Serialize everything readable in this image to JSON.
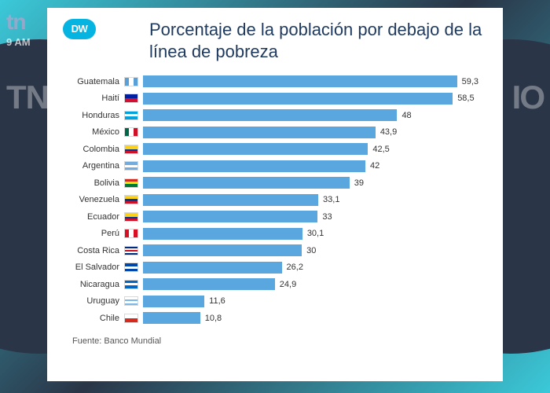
{
  "overlay": {
    "logo_text": "tn",
    "ribbon_glyph": "8",
    "time": "9 AM",
    "watermark_left": "TN",
    "watermark_right": "IO"
  },
  "card": {
    "dw_logo": "DW",
    "title": "Porcentaje de la población por debajo de la línea de pobreza",
    "source": "Fuente: Banco Mundial"
  },
  "chart": {
    "type": "bar-horizontal",
    "bar_color": "#5aa7e0",
    "background_color": "#ffffff",
    "max_value": 65,
    "label_fontsize": 11,
    "value_fontsize": 11,
    "data": [
      {
        "country": "Guatemala",
        "value": 59.3,
        "label": "59,3",
        "flag": [
          "#5aa0d8",
          "#ffffff",
          "#5aa0d8"
        ],
        "flag_dir": "v"
      },
      {
        "country": "Haití",
        "value": 58.5,
        "label": "58,5",
        "flag": [
          "#00209f",
          "#d21034"
        ],
        "flag_dir": "h"
      },
      {
        "country": "Honduras",
        "value": 48,
        "label": "48",
        "flag": [
          "#00a3dd",
          "#ffffff",
          "#00a3dd"
        ],
        "flag_dir": "h"
      },
      {
        "country": "México",
        "value": 43.9,
        "label": "43,9",
        "flag": [
          "#006847",
          "#ffffff",
          "#ce1126"
        ],
        "flag_dir": "v"
      },
      {
        "country": "Colombia",
        "value": 42.5,
        "label": "42,5",
        "flag": [
          "#fcd116",
          "#fcd116",
          "#003893",
          "#ce1126"
        ],
        "flag_dir": "h"
      },
      {
        "country": "Argentina",
        "value": 42,
        "label": "42",
        "flag": [
          "#74acdf",
          "#ffffff",
          "#74acdf"
        ],
        "flag_dir": "h"
      },
      {
        "country": "Bolivia",
        "value": 39,
        "label": "39",
        "flag": [
          "#d52b1e",
          "#f9e300",
          "#007934"
        ],
        "flag_dir": "h"
      },
      {
        "country": "Venezuela",
        "value": 33.1,
        "label": "33,1",
        "flag": [
          "#fcd116",
          "#003893",
          "#ce1126"
        ],
        "flag_dir": "h"
      },
      {
        "country": "Ecuador",
        "value": 33,
        "label": "33",
        "flag": [
          "#fcd116",
          "#fcd116",
          "#003893",
          "#ce1126"
        ],
        "flag_dir": "h"
      },
      {
        "country": "Perú",
        "value": 30.1,
        "label": "30,1",
        "flag": [
          "#d91023",
          "#ffffff",
          "#d91023"
        ],
        "flag_dir": "v"
      },
      {
        "country": "Costa Rica",
        "value": 30,
        "label": "30",
        "flag": [
          "#002b7f",
          "#ffffff",
          "#ce1126",
          "#ffffff",
          "#002b7f"
        ],
        "flag_dir": "h"
      },
      {
        "country": "El Salvador",
        "value": 26.2,
        "label": "26,2",
        "flag": [
          "#0047ab",
          "#ffffff",
          "#0047ab"
        ],
        "flag_dir": "h"
      },
      {
        "country": "Nicaragua",
        "value": 24.9,
        "label": "24,9",
        "flag": [
          "#0067c6",
          "#ffffff",
          "#0067c6"
        ],
        "flag_dir": "h"
      },
      {
        "country": "Uruguay",
        "value": 11.6,
        "label": "11,6",
        "flag": [
          "#ffffff",
          "#7cb9e8",
          "#ffffff",
          "#7cb9e8"
        ],
        "flag_dir": "h"
      },
      {
        "country": "Chile",
        "value": 10.8,
        "label": "10,8",
        "flag": [
          "#ffffff",
          "#d52b1e"
        ],
        "flag_dir": "h"
      }
    ]
  }
}
